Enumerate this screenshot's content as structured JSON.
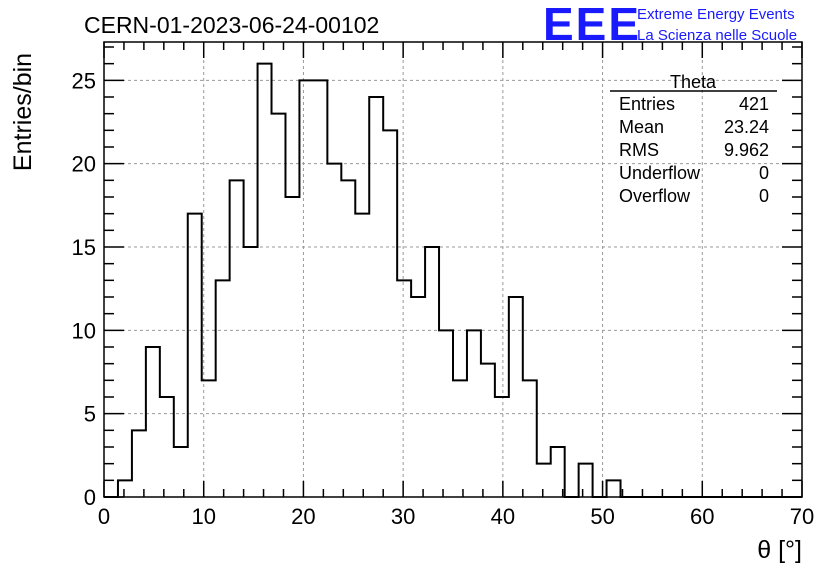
{
  "chart_data": {
    "type": "bar",
    "title": "CERN-01-2023-06-24-00102",
    "xlabel": "θ [°]",
    "ylabel": "Entries/bin",
    "xlim": [
      0,
      70
    ],
    "ylim": [
      0,
      27.3
    ],
    "bin_width": 1.4,
    "bin_start": 0,
    "x_ticks": [
      0,
      10,
      20,
      30,
      40,
      50,
      60,
      70
    ],
    "y_ticks": [
      0,
      5,
      10,
      15,
      20,
      25
    ],
    "grid": true,
    "values": [
      0,
      1,
      4,
      9,
      6,
      3,
      17,
      7,
      13,
      19,
      15,
      26,
      23,
      18,
      25,
      25,
      20,
      19,
      17,
      24,
      22,
      13,
      12,
      15,
      10,
      7,
      10,
      8,
      6,
      12,
      7,
      2,
      3,
      0,
      2,
      0,
      1,
      0,
      0,
      0,
      0,
      0,
      0,
      0,
      0,
      0,
      0,
      0,
      0,
      0
    ],
    "stats": {
      "name": "Theta",
      "rows": [
        {
          "label": "Entries",
          "value": "421"
        },
        {
          "label": "Mean",
          "value": "23.24"
        },
        {
          "label": "RMS",
          "value": "9.962"
        },
        {
          "label": "Underflow",
          "value": "0"
        },
        {
          "label": "Overflow",
          "value": "0"
        }
      ]
    }
  },
  "logo": {
    "mark": "EEE",
    "line1": "Extreme Energy Events",
    "line2": "La Scienza nelle Scuole",
    "color": "#1a1aff"
  }
}
